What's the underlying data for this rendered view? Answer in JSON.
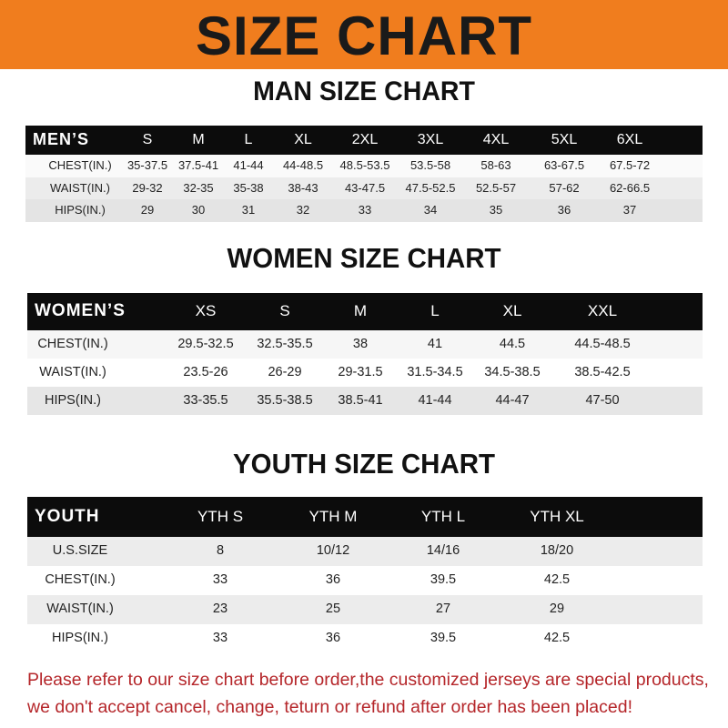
{
  "header": {
    "title": "SIZE CHART"
  },
  "tables": [
    {
      "title": "MAN SIZE CHART",
      "columns": [
        "MEN’S",
        "S",
        "M",
        "L",
        "XL",
        "2XL",
        "3XL",
        "4XL",
        "5XL",
        "6XL"
      ],
      "rows": [
        [
          "CHEST(IN.)",
          "35-37.5",
          "37.5-41",
          "41-44",
          "44-48.5",
          "48.5-53.5",
          "53.5-58",
          "58-63",
          "63-67.5",
          "67.5-72"
        ],
        [
          "WAIST(IN.)",
          "29-32",
          "32-35",
          "35-38",
          "38-43",
          "43-47.5",
          "47.5-52.5",
          "52.5-57",
          "57-62",
          "62-66.5"
        ],
        [
          "HIPS(IN.)",
          "29",
          "30",
          "31",
          "32",
          "33",
          "34",
          "35",
          "36",
          "37"
        ]
      ]
    },
    {
      "title": "WOMEN SIZE CHART",
      "columns": [
        "WOMEN’S",
        "XS",
        "S",
        "M",
        "L",
        "XL",
        "XXL"
      ],
      "rows": [
        [
          "CHEST(IN.)",
          "29.5-32.5",
          "32.5-35.5",
          "38",
          "41",
          "44.5",
          "44.5-48.5"
        ],
        [
          "WAIST(IN.)",
          "23.5-26",
          "26-29",
          "29-31.5",
          "31.5-34.5",
          "34.5-38.5",
          "38.5-42.5"
        ],
        [
          "HIPS(IN.)",
          "33-35.5",
          "35.5-38.5",
          "38.5-41",
          "41-44",
          "44-47",
          "47-50"
        ]
      ]
    },
    {
      "title": "YOUTH SIZE CHART",
      "columns": [
        "YOUTH",
        "YTH S",
        "YTH M",
        "YTH L",
        "YTH XL"
      ],
      "rows": [
        [
          "U.S.SIZE",
          "8",
          "10/12",
          "14/16",
          "18/20"
        ],
        [
          "CHEST(IN.)",
          "33",
          "36",
          "39.5",
          "42.5"
        ],
        [
          "WAIST(IN.)",
          "23",
          "25",
          "27",
          "29"
        ],
        [
          "HIPS(IN.)",
          "33",
          "36",
          "39.5",
          "42.5"
        ]
      ]
    }
  ],
  "notice": {
    "lines": [
      "Please refer to our size chart before order,the customized jerseys are special products,",
      "we don't accept cancel, change, teturn or refund after order has been placed!"
    ]
  }
}
